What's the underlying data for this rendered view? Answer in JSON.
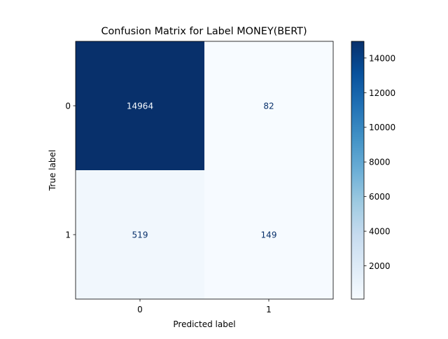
{
  "chart_data": {
    "type": "heatmap",
    "title": "Confusion Matrix for Label MONEY(BERT)",
    "xlabel": "Predicted label",
    "ylabel": "True label",
    "x_categories": [
      "0",
      "1"
    ],
    "y_categories": [
      "0",
      "1"
    ],
    "matrix": [
      [
        14964,
        82
      ],
      [
        519,
        149
      ]
    ],
    "colormap": "Blues",
    "colorbar": {
      "min": 82,
      "max": 14964,
      "ticks": [
        2000,
        4000,
        6000,
        8000,
        10000,
        12000,
        14000
      ]
    },
    "grid": false
  }
}
